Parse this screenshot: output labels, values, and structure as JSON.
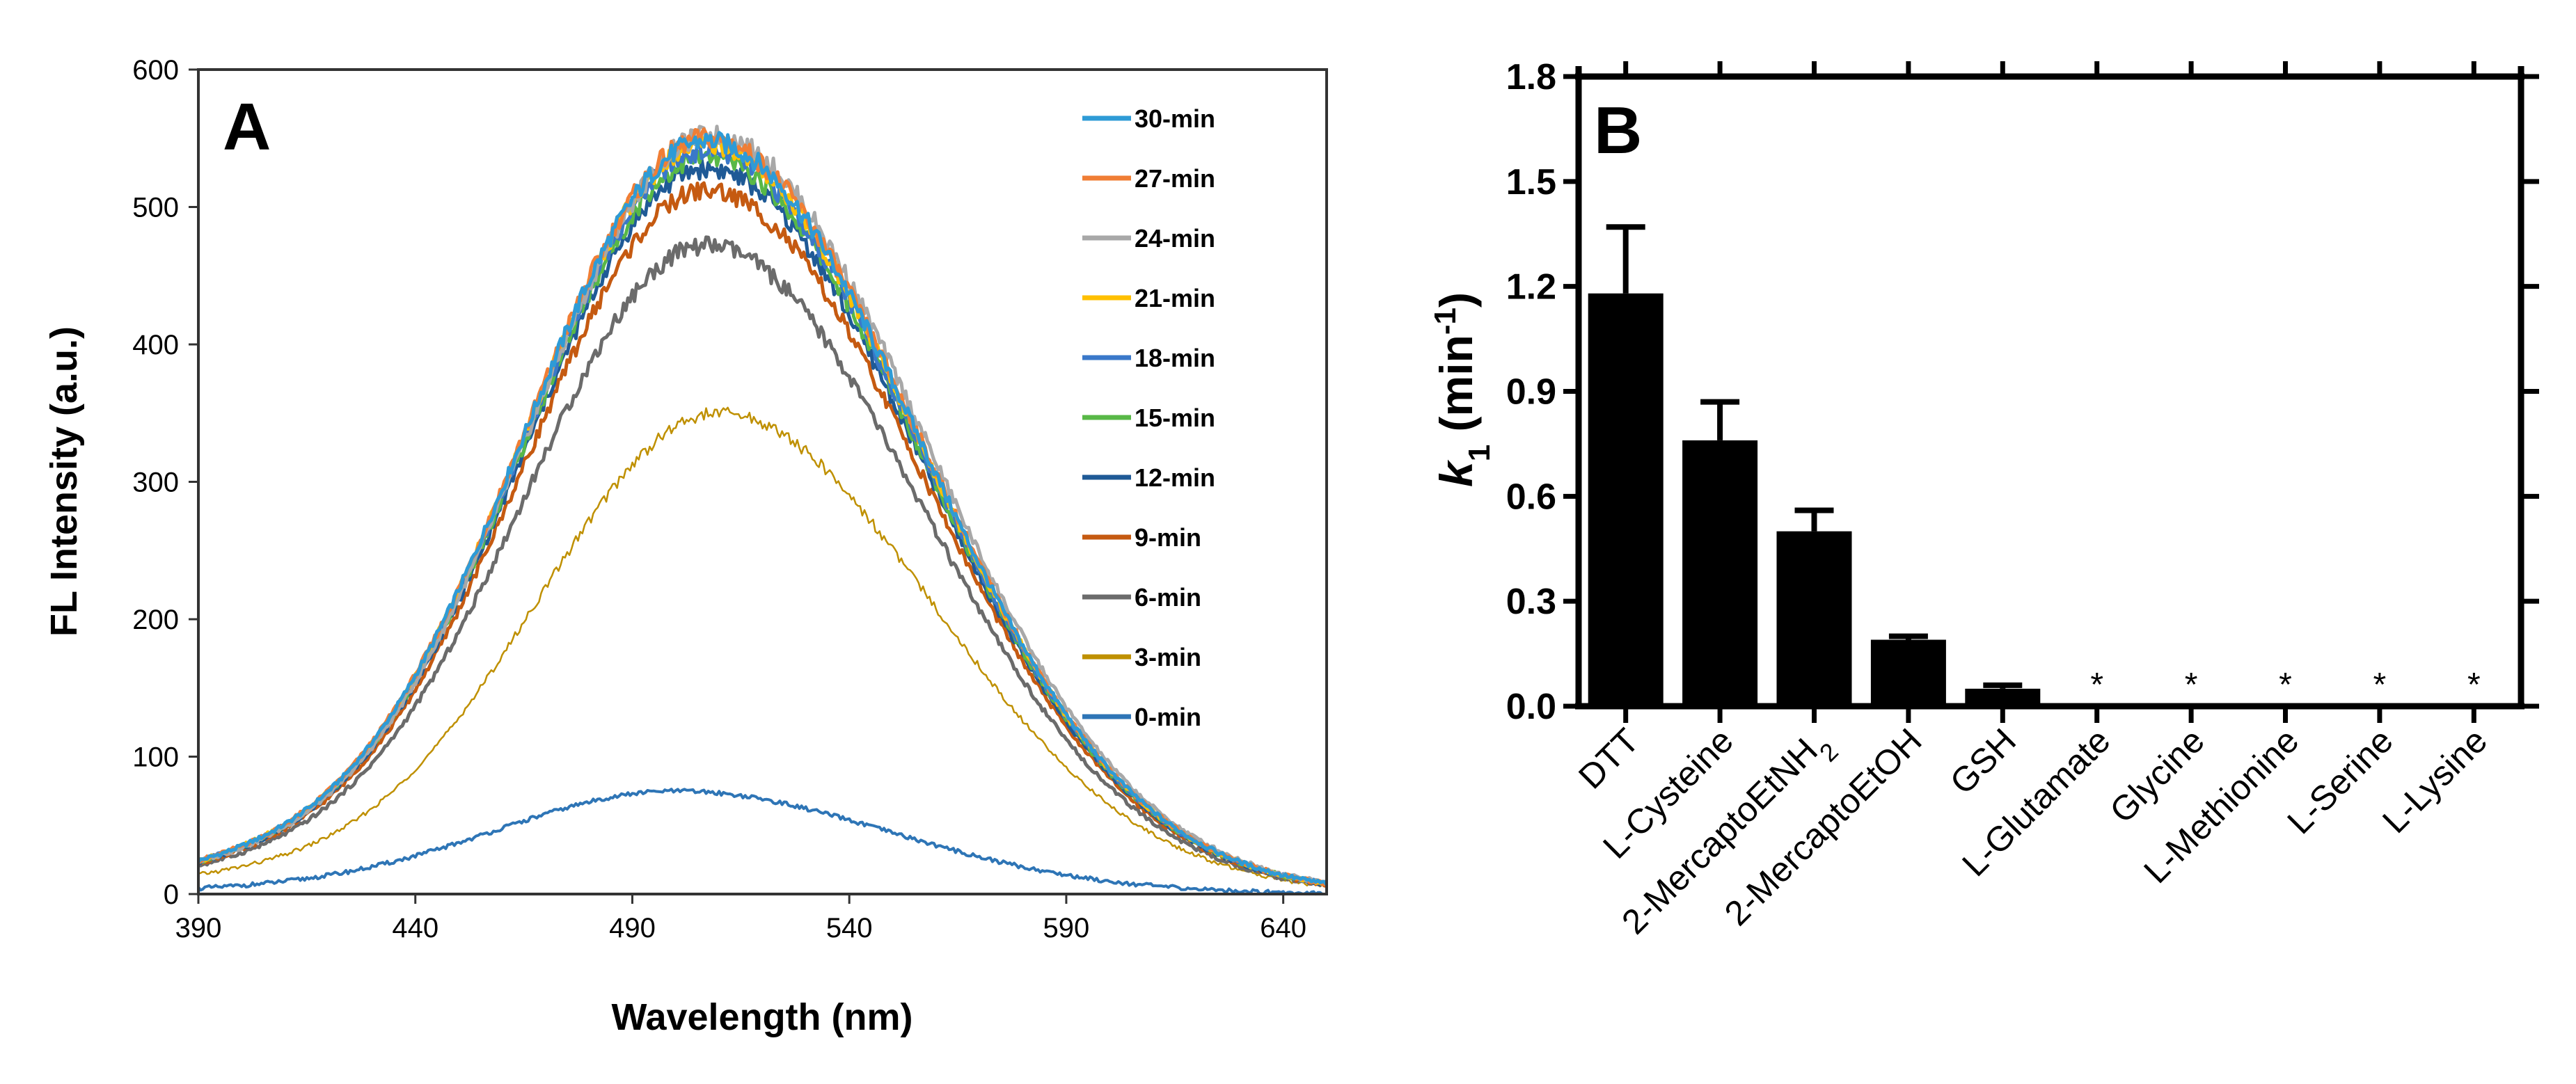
{
  "chart_data": [
    {
      "panel": "A",
      "type": "line",
      "title": "",
      "xlabel": "Wavelength (nm)",
      "ylabel": "FL Intensity (a.u.)",
      "xlim": [
        390,
        650
      ],
      "ylim": [
        0,
        600
      ],
      "xticks": [
        "390",
        "440",
        "490",
        "540",
        "590",
        "640"
      ],
      "yticks": [
        "0",
        "100",
        "200",
        "300",
        "400",
        "500",
        "600"
      ],
      "legend_position": "top-right",
      "grid": false,
      "series": [
        {
          "name": "30-min",
          "color": "#2E9BD6",
          "peak": 548,
          "peak_x": 507
        },
        {
          "name": "27-min",
          "color": "#F07E35",
          "peak": 550,
          "peak_x": 507
        },
        {
          "name": "24-min",
          "color": "#A8A8A8",
          "peak": 552,
          "peak_x": 508
        },
        {
          "name": "21-min",
          "color": "#FFC000",
          "peak": 546,
          "peak_x": 507
        },
        {
          "name": "18-min",
          "color": "#3A78C9",
          "peak": 541,
          "peak_x": 507
        },
        {
          "name": "15-min",
          "color": "#58B847",
          "peak": 536,
          "peak_x": 507
        },
        {
          "name": "12-min",
          "color": "#1F5A96",
          "peak": 528,
          "peak_x": 507
        },
        {
          "name": "9-min",
          "color": "#C55A11",
          "peak": 512,
          "peak_x": 507
        },
        {
          "name": "6-min",
          "color": "#6B6B6B",
          "peak": 472,
          "peak_x": 507
        },
        {
          "name": "3-min",
          "color": "#BF9000",
          "peak": 350,
          "peak_x": 510
        },
        {
          "name": "0-min",
          "color": "#2E75B6",
          "peak": 75,
          "peak_x": 500
        }
      ]
    },
    {
      "panel": "B",
      "type": "bar",
      "title": "",
      "xlabel": "",
      "ylabel_main": "k",
      "ylabel_sub": "1",
      "ylabel_unit_open": " (min",
      "ylabel_unit_sup": "-1",
      "ylabel_unit_close": ")",
      "ylim": [
        0,
        1.8
      ],
      "yticks": [
        "0.0",
        "0.3",
        "0.6",
        "0.9",
        "1.2",
        "1.5",
        "1.8"
      ],
      "categories": [
        "DTT",
        "L-Cysteine",
        "2-MercaptoEtNH",
        "2-MercaptoEtOH",
        "GSH",
        "L-Glutamate",
        "Glycine",
        "L-Methionine",
        "L-Serine",
        "L-Lysine"
      ],
      "category_subscripts": [
        "",
        "",
        "2",
        "",
        "",
        "",
        "",
        "",
        "",
        ""
      ],
      "values": [
        1.18,
        0.76,
        0.5,
        0.19,
        0.05,
        0,
        0,
        0,
        0,
        0
      ],
      "errors": [
        0.19,
        0.11,
        0.06,
        0.01,
        0.01,
        0,
        0,
        0,
        0,
        0
      ],
      "annotations": [
        "",
        "",
        "",
        "",
        "",
        "*",
        "*",
        "*",
        "*",
        "*"
      ],
      "grid": false
    }
  ]
}
